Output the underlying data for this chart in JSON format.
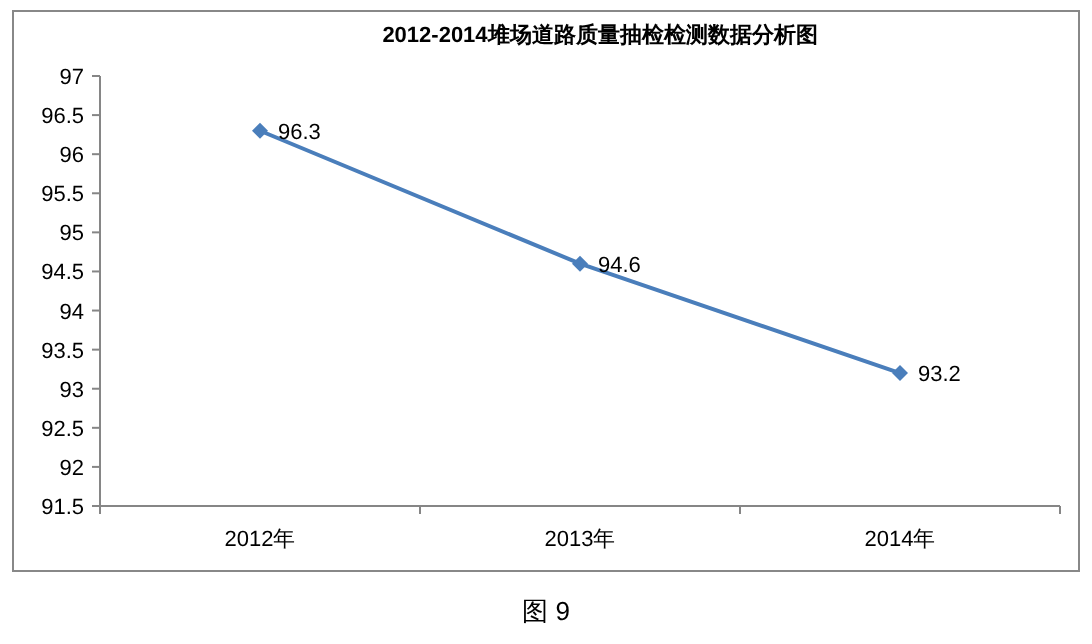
{
  "chart_data": {
    "type": "line",
    "title": "2012-2014堆场道路质量抽检检测数据分析图",
    "categories": [
      "2012年",
      "2013年",
      "2014年"
    ],
    "series": [
      {
        "color": "#4a7ebb",
        "values": [
          96.3,
          94.6,
          93.2
        ]
      }
    ],
    "ylim": [
      91.5,
      97
    ],
    "yticks": [
      91.5,
      92,
      92.5,
      93,
      93.5,
      94,
      94.5,
      95,
      95.5,
      96,
      96.5,
      97
    ],
    "marker": "diamond",
    "data_labels": true,
    "annotations": [
      "图 9"
    ]
  }
}
